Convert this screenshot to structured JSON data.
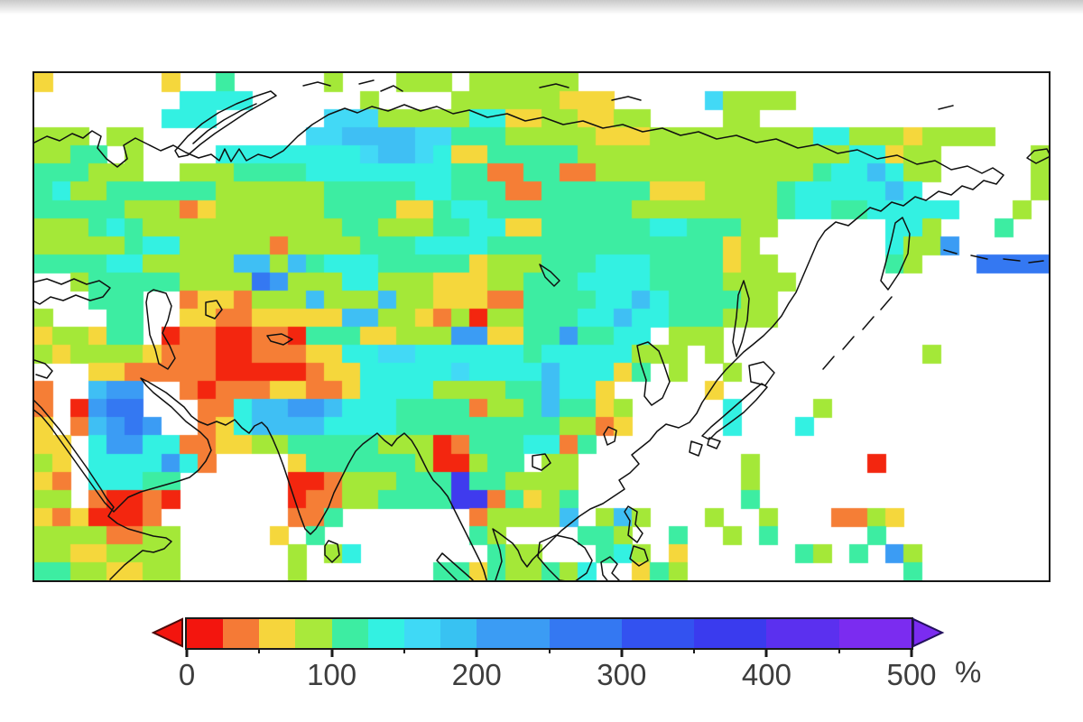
{
  "chart_data": {
    "type": "heatmap",
    "title": "",
    "description": "Gridded raster map of Eurasia showing values in percent (0-500%), with land cells colored by value and ocean/no-data cells white; black coastlines overlaid; horizontal color scale below the map.",
    "colorbar": {
      "unit_label": "%",
      "range": [
        0,
        500
      ],
      "tick_values": [
        0,
        100,
        200,
        300,
        400,
        500
      ],
      "minor_tick_values": [
        50,
        150,
        250,
        350,
        450
      ],
      "under_arrow_color": "#F3150E",
      "over_arrow_color": "#7B2CF0",
      "segments": [
        {
          "from": 0,
          "to": 25,
          "color": "#F3150E"
        },
        {
          "from": 25,
          "to": 50,
          "color": "#F57A36"
        },
        {
          "from": 50,
          "to": 75,
          "color": "#F6D53C"
        },
        {
          "from": 75,
          "to": 100,
          "color": "#A9E93B"
        },
        {
          "from": 100,
          "to": 125,
          "color": "#3DEDA2"
        },
        {
          "from": 125,
          "to": 150,
          "color": "#33F1E2"
        },
        {
          "from": 150,
          "to": 175,
          "color": "#3FD9F6"
        },
        {
          "from": 175,
          "to": 200,
          "color": "#38C2F2"
        },
        {
          "from": 200,
          "to": 250,
          "color": "#3B9CF4"
        },
        {
          "from": 250,
          "to": 300,
          "color": "#3478F2"
        },
        {
          "from": 300,
          "to": 350,
          "color": "#3352F0"
        },
        {
          "from": 350,
          "to": 400,
          "color": "#3A3BEE"
        },
        {
          "from": 400,
          "to": 450,
          "color": "#5B30EF"
        },
        {
          "from": 450,
          "to": 500,
          "color": "#7B2CF0"
        }
      ]
    },
    "grid": {
      "cols": 56,
      "rows": 28,
      "palette": {
        ".": null,
        "r": "#F3260F",
        "o": "#F57E36",
        "y": "#F5D73C",
        "g": "#A4E838",
        "e": "#3DEDA2",
        "c": "#33F1E2",
        "t": "#42D9F6",
        "s": "#3FBFF4",
        "b": "#3B9CF4",
        "B": "#3478F2",
        "d": "#3352F0",
        "I": "#3F3BEE"
      },
      "cells": [
        "y......y..e.....g...ggg.gggggg..........................",
        "........cccc......g....ggggggyyy.....tgggg..............",
        ".......ccc......tttgggggccyyggyygg....gg................",
        "ggg.gg.........ttsssstteeegggggyyygggggggggccgggygggg...",
        "ggee.g....cccccccctsstcyyeeeeegggggggggggggggccygg.....gg",
        "eeeggg..gggeeeecccccccceeooeeooggggggggggggeccscgg.....ge",
        "ecggeeeeeeggggggeeeeecceeeooeeeeeeyyyggggecccccsc......gs",
        "eeeeegggoyggggggeeeeyyecceeeeeeeeggggggggecceeccccc...g...",
        "gggecegggggggggggeegggeeccyyeeeeeecceeegg......ccg...e..",
        "gggggeccgggggoggggeeecccceeeeeeeeeeeeeyg.......cggb.....",
        "eeeeccgggggssgseccceeeeeygggeeeccceeeeygg......eg...BBBB",
        "..geeeeeggggBbgggccgggyyyggeeecccceeeegggg..............",
        "...eee..oyyogggsgggsggyyyooeeeeccsceeeegg...............",
        "g...ee..yyooyyyyyssggyogrggeeeccscceeeggg...............",
        "yggyee.roorrooreeeyygggbbyyeebeecc.ggg..................",
        "gyggggyooorroooyyccttccccccecccccggg.g...........g......",
        "...yyooooorrrrroyyccccctccccscccye.g..g.................",
        "o..sbb..oroooyyooyccccggggeesccy.....y..................",
        "o.rbBB...oocssbbsccceeeeoggeseeyg.....c....g............",
        "y.osbBb..oycsssscccceeeeeeeeeggoy.....c...c.............",
        "yy.cbbccooyyggeeeeegggroeeeccoe.........................",
        "gy.ccccbco....yeeeeeegrrgee.gg.........g......r.........",
        "yo.cccee......rrogggeeeIeegggg.........g................",
        "gg.orror......rooggeeeeIIoeyge.........e................",
        "yoyrrro.......ooe.......oggggs.gsg...g..g...oogy........",
        "ggggoogg.....y.e........eg....eeg..e..g.e.....e.........",
        "ggyygggg......g.gc.......egg...ecg.y......eg.e.bg.......",
        "eeggyygg......g.......eeyeggegc..yeg............e......."
      ]
    }
  }
}
